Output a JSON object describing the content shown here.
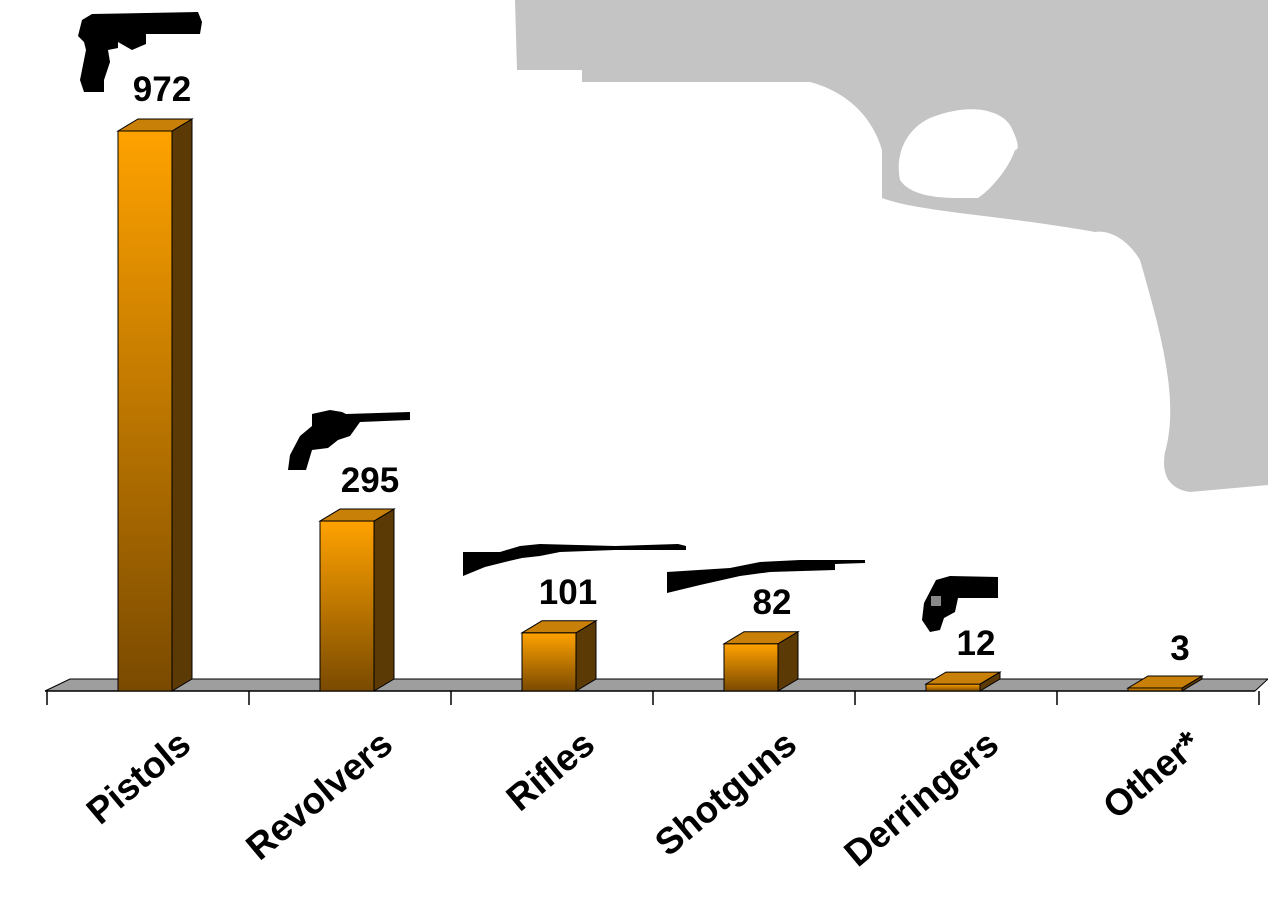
{
  "chart_data": {
    "type": "bar",
    "categories": [
      "Pistols",
      "Revolvers",
      "Rifles",
      "Shotguns",
      "Derringers",
      "Other*"
    ],
    "values": [
      972,
      295,
      101,
      82,
      12,
      3
    ],
    "value_labels": [
      "972",
      "295",
      "101",
      "82",
      "12",
      "3"
    ],
    "title": "",
    "xlabel": "",
    "ylabel": "",
    "ylim": [
      0,
      972
    ],
    "grid": false,
    "legend": "none",
    "style": "3d-bars"
  },
  "colors": {
    "bar_top": "#FFA200",
    "bar_bottom": "#7A4A00",
    "bar_side": "#5C3A06",
    "bar_cap": "#C88008",
    "floor": "#9E9E9E",
    "background_silhouette": "#C4C4C4",
    "icon": "#000000"
  },
  "icons": [
    "pistol-icon",
    "revolver-icon",
    "rifle-icon",
    "shotgun-icon",
    "derringer-icon"
  ],
  "background_icon": "large-pistol-silhouette-icon"
}
